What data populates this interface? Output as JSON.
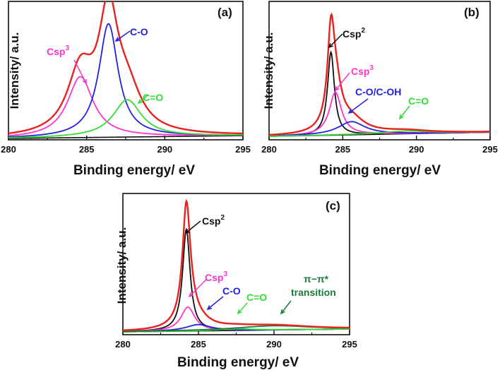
{
  "chart_data": [
    {
      "type": "line",
      "panel_label": "(a)",
      "xlabel": "Binding energy/ eV",
      "ylabel": "Intensity/ a.u.",
      "xlim": [
        280,
        295
      ],
      "ylim": [
        0,
        1.0
      ],
      "xticks": [
        "280",
        "285",
        "290",
        "295"
      ],
      "baseline": {
        "start": 0.01,
        "end": 0.03
      },
      "series": [
        {
          "name": "Csp3",
          "color": "#ff33cc",
          "center": 284.6,
          "amplitude": 0.44,
          "width": 1.0
        },
        {
          "name": "C-O",
          "color": "#2222dd",
          "center": 286.4,
          "amplitude": 0.82,
          "width": 0.75
        },
        {
          "name": "C=O",
          "color": "#33dd33",
          "center": 287.6,
          "amplitude": 0.27,
          "width": 1.1
        }
      ],
      "envelope_color": "#e8221f",
      "background_color": "#111111",
      "annotations": [
        {
          "label": "Csp",
          "sup": "3",
          "color": "#ff33cc",
          "target": "Csp3"
        },
        {
          "label": "C-O",
          "sup": "",
          "color": "#2222dd",
          "target": "C-O"
        },
        {
          "label": "C=O",
          "sup": "",
          "color": "#33dd33",
          "target": "C=O"
        }
      ]
    },
    {
      "type": "line",
      "panel_label": "(b)",
      "xlabel": "Binding energy/ eV",
      "ylabel": "Intensity/ a.u.",
      "xlim": [
        280,
        295
      ],
      "ylim": [
        0,
        1.0
      ],
      "xticks": [
        "280",
        "285",
        "290",
        "295"
      ],
      "baseline": {
        "start": 0.025,
        "end": 0.055
      },
      "series": [
        {
          "name": "Csp2",
          "color": "#111111",
          "center": 284.2,
          "amplitude": 0.6,
          "width": 0.28
        },
        {
          "name": "Csp3",
          "color": "#ff33cc",
          "center": 284.5,
          "amplitude": 0.31,
          "width": 0.5
        },
        {
          "name": "C-O/C-OH",
          "color": "#2222dd",
          "center": 285.6,
          "amplitude": 0.095,
          "width": 1.1
        },
        {
          "name": "C=O",
          "color": "#33dd33",
          "center": 289.3,
          "amplitude": 0.02,
          "width": 2.0
        }
      ],
      "envelope_color": "#e8221f",
      "background_color": "#111111",
      "annotations": [
        {
          "label": "Csp",
          "sup": "2",
          "color": "#111111",
          "target": "Csp2"
        },
        {
          "label": "Csp",
          "sup": "3",
          "color": "#ff33cc",
          "target": "Csp3"
        },
        {
          "label": "C-O/C-OH",
          "sup": "",
          "color": "#2222dd",
          "target": "C-O/C-OH"
        },
        {
          "label": "C=O",
          "sup": "",
          "color": "#33dd33",
          "target": "C=O"
        }
      ]
    },
    {
      "type": "line",
      "panel_label": "(c)",
      "xlabel": "Binding energy/ eV",
      "ylabel": "Intensity/ a.u.",
      "xlim": [
        280,
        295
      ],
      "ylim": [
        0,
        1.0
      ],
      "xticks": [
        "280",
        "285",
        "290",
        "295"
      ],
      "baseline": {
        "start": 0.02,
        "end": 0.04
      },
      "series": [
        {
          "name": "Csp2",
          "color": "#111111",
          "center": 284.2,
          "amplitude": 0.72,
          "width": 0.3
        },
        {
          "name": "Csp3",
          "color": "#ff33cc",
          "center": 284.3,
          "amplitude": 0.17,
          "width": 0.55
        },
        {
          "name": "C-O",
          "color": "#2222dd",
          "center": 285.0,
          "amplitude": 0.045,
          "width": 1.0
        },
        {
          "name": "C=O",
          "color": "#33dd33",
          "center": 287.5,
          "amplitude": 0.012,
          "width": 1.4
        },
        {
          "name": "π–π* transition",
          "color": "#1b7a3a",
          "center": 290.0,
          "amplitude": 0.03,
          "width": 3.0
        }
      ],
      "envelope_color": "#e8221f",
      "background_color": "#111111",
      "annotations": [
        {
          "label": "Csp",
          "sup": "2",
          "color": "#111111",
          "target": "Csp2"
        },
        {
          "label": "Csp",
          "sup": "3",
          "color": "#ff33cc",
          "target": "Csp3"
        },
        {
          "label": "C-O",
          "sup": "",
          "color": "#2222dd",
          "target": "C-O"
        },
        {
          "label": "C=O",
          "sup": "",
          "color": "#33dd33",
          "target": "C=O"
        },
        {
          "label": "π−π*",
          "sup": "",
          "color": "#1b7a3a",
          "target": "π–π* transition"
        },
        {
          "label": "transition",
          "sup": "",
          "color": "#1b7a3a",
          "target": "π–π* transition"
        }
      ]
    }
  ]
}
